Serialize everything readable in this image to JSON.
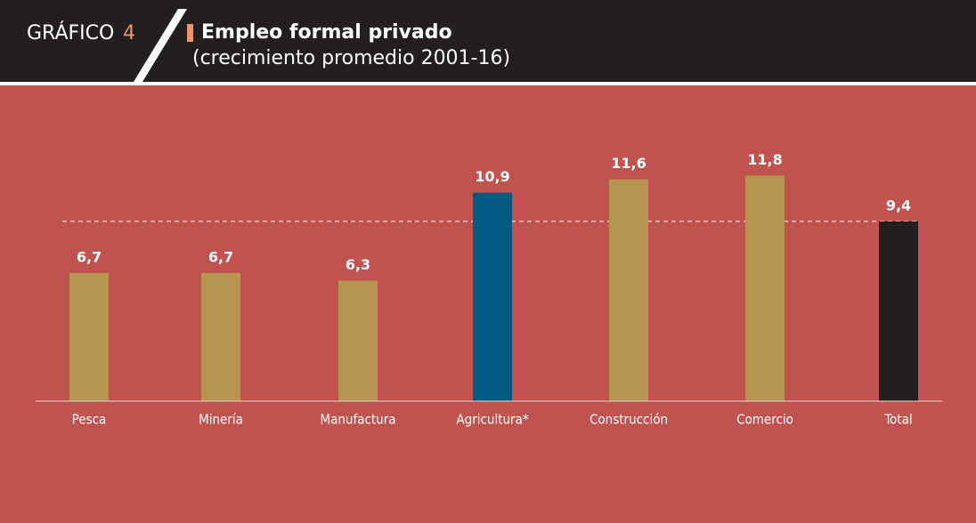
{
  "chart_data": {
    "type": "bar",
    "label": "GRÁFICO",
    "number": "4",
    "title": "Empleo formal privado",
    "subtitle": "(crecimiento promedio 2001-16)",
    "categories": [
      "Pesca",
      "Minería",
      "Manufactura",
      "Agricultura*",
      "Construcción",
      "Comercio",
      "Total"
    ],
    "values": [
      6.7,
      6.7,
      6.3,
      10.9,
      11.6,
      11.8,
      9.4
    ],
    "value_labels": [
      "6,7",
      "6,7",
      "6,3",
      "10,9",
      "11,6",
      "11,8",
      "9,4"
    ],
    "colors": [
      "#b5954f",
      "#b5954f",
      "#b5954f",
      "#005a82",
      "#b5954f",
      "#b5954f",
      "#231f20"
    ],
    "ylim": [
      0,
      16
    ],
    "reference_line": true
  }
}
